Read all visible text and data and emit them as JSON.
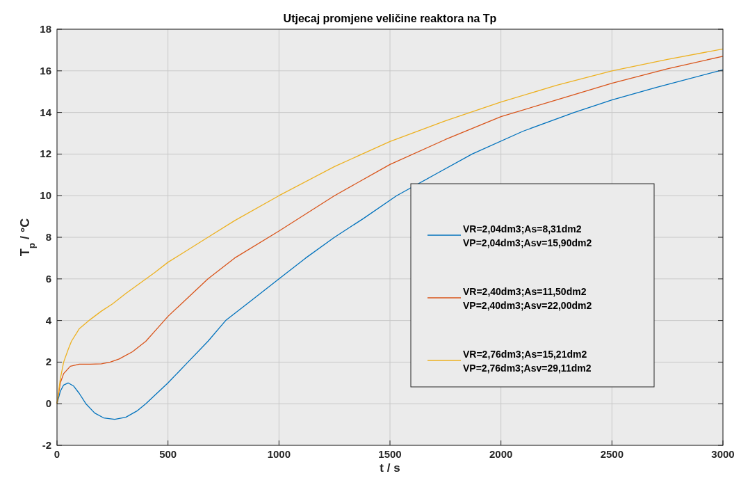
{
  "chart_data": {
    "type": "line",
    "title": "Utjecaj promjene veličine reaktora na Tp",
    "xlabel": "t / s",
    "ylabel": "T$_{p}$ / °C",
    "xlim": [
      0,
      3000
    ],
    "xticks": [
      0,
      500,
      1000,
      1500,
      2000,
      2500,
      3000
    ],
    "ylim": [
      -2,
      18
    ],
    "yticks": [
      -2,
      0,
      2,
      4,
      6,
      8,
      10,
      12,
      14,
      16,
      18
    ],
    "grid": true,
    "legend": "right",
    "series": [
      {
        "name": "VR=2,04dm3;As=8,31dm2\nVP=2,04dm3;Asv=15,90dm2",
        "color": "#0072bd",
        "x": [
          0,
          15,
          30,
          50,
          75,
          100,
          130,
          170,
          210,
          260,
          310,
          360,
          400,
          450,
          500,
          590,
          680,
          760,
          880,
          1000,
          1120,
          1250,
          1380,
          1530,
          1700,
          1870,
          2100,
          2330,
          2500,
          2700,
          3000
        ],
        "values": [
          0,
          0.6,
          0.9,
          1.0,
          0.85,
          0.5,
          0,
          -0.45,
          -0.68,
          -0.75,
          -0.65,
          -0.35,
          0,
          0.5,
          1,
          2,
          3,
          4,
          5,
          6,
          7,
          8,
          8.9,
          10,
          11,
          12,
          13.1,
          14,
          14.6,
          15.2,
          16.05
        ]
      },
      {
        "name": "VR=2,40dm3;As=11,50dm2\nVP=2,40dm3;Asv=22,00dm2",
        "color": "#d95319",
        "x": [
          0,
          15,
          30,
          60,
          100,
          150,
          200,
          240,
          280,
          340,
          400,
          450,
          500,
          590,
          680,
          800,
          1000,
          1250,
          1500,
          1750,
          2000,
          2250,
          2500,
          2750,
          3000
        ],
        "values": [
          0,
          1,
          1.45,
          1.8,
          1.9,
          1.9,
          1.92,
          2,
          2.15,
          2.5,
          3,
          3.6,
          4.2,
          5.1,
          6,
          7,
          8.3,
          10,
          11.5,
          12.7,
          13.8,
          14.6,
          15.4,
          16.1,
          16.7
        ]
      },
      {
        "name": "VR=2,76dm3;As=15,21dm2\nVP=2,76dm3;Asv=29,11dm2",
        "color": "#edb120",
        "x": [
          0,
          15,
          30,
          50,
          65,
          100,
          150,
          200,
          250,
          310,
          375,
          440,
          500,
          590,
          680,
          800,
          1000,
          1250,
          1500,
          1750,
          2000,
          2250,
          2500,
          2750,
          3000
        ],
        "values": [
          0,
          1.2,
          2,
          2.6,
          3,
          3.6,
          4.05,
          4.45,
          4.8,
          5.3,
          5.8,
          6.3,
          6.8,
          7.4,
          8,
          8.8,
          10,
          11.4,
          12.6,
          13.6,
          14.5,
          15.3,
          16,
          16.55,
          17.05
        ]
      }
    ]
  }
}
